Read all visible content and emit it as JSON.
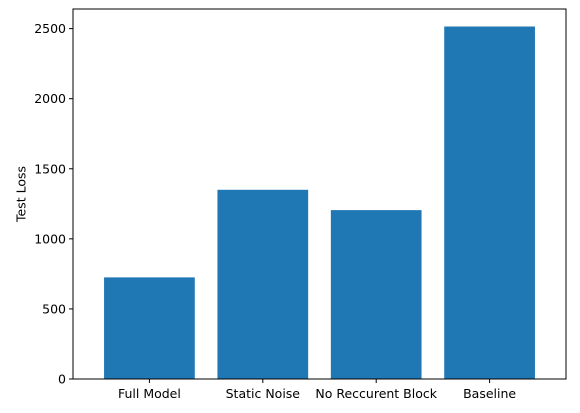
{
  "chart_data": {
    "type": "bar",
    "categories": [
      "Full Model",
      "Static Noise",
      "No Reccurent Block",
      "Baseline"
    ],
    "values": [
      725,
      1350,
      1205,
      2515
    ],
    "title": "",
    "xlabel": "",
    "ylabel": "Test Loss",
    "ylim": [
      0,
      2640
    ],
    "yticks": [
      0,
      500,
      1000,
      1500,
      2000,
      2500
    ],
    "grid": false,
    "legend": "none",
    "colors": {
      "bar": "#1f77b4",
      "axis": "#000000"
    }
  }
}
